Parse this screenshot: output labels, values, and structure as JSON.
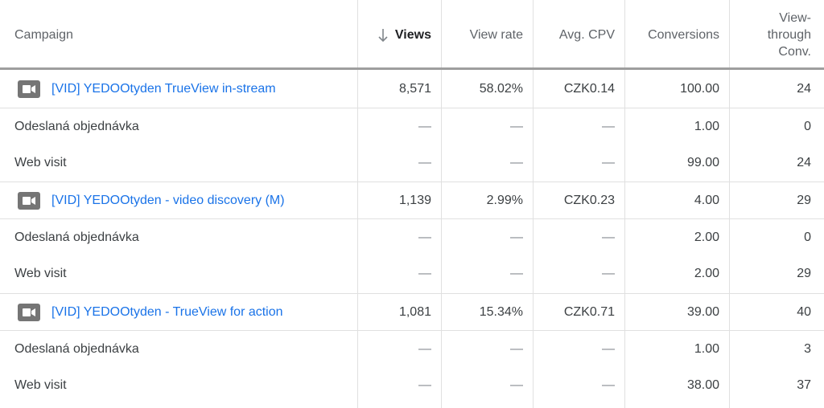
{
  "header": {
    "campaign": "Campaign",
    "views": "Views",
    "view_rate": "View rate",
    "avg_cpv": "Avg. CPV",
    "conversions": "Conversions",
    "view_through_1": "View-",
    "view_through_2": "through",
    "view_through_3": "Conv."
  },
  "rows": [
    {
      "name": "[VID] YEDOOtyden TrueView in-stream",
      "views": "8,571",
      "view_rate": "58.02%",
      "avg_cpv": "CZK0.14",
      "conversions": "100.00",
      "vtc": "24"
    },
    {
      "name": "Odeslaná objednávka",
      "views": "—",
      "view_rate": "—",
      "avg_cpv": "—",
      "conversions": "1.00",
      "vtc": "0"
    },
    {
      "name": "Web visit",
      "views": "—",
      "view_rate": "—",
      "avg_cpv": "—",
      "conversions": "99.00",
      "vtc": "24"
    },
    {
      "name": "[VID] YEDOOtyden - video discovery (M)",
      "views": "1,139",
      "view_rate": "2.99%",
      "avg_cpv": "CZK0.23",
      "conversions": "4.00",
      "vtc": "29"
    },
    {
      "name": "Odeslaná objednávka",
      "views": "—",
      "view_rate": "—",
      "avg_cpv": "—",
      "conversions": "2.00",
      "vtc": "0"
    },
    {
      "name": "Web visit",
      "views": "—",
      "view_rate": "—",
      "avg_cpv": "—",
      "conversions": "2.00",
      "vtc": "29"
    },
    {
      "name": "[VID] YEDOOtyden - TrueView for action",
      "views": "1,081",
      "view_rate": "15.34%",
      "avg_cpv": "CZK0.71",
      "conversions": "39.00",
      "vtc": "40"
    },
    {
      "name": "Odeslaná objednávka",
      "views": "—",
      "view_rate": "—",
      "avg_cpv": "—",
      "conversions": "1.00",
      "vtc": "3"
    },
    {
      "name": "Web visit",
      "views": "—",
      "view_rate": "—",
      "avg_cpv": "—",
      "conversions": "38.00",
      "vtc": "37"
    }
  ]
}
